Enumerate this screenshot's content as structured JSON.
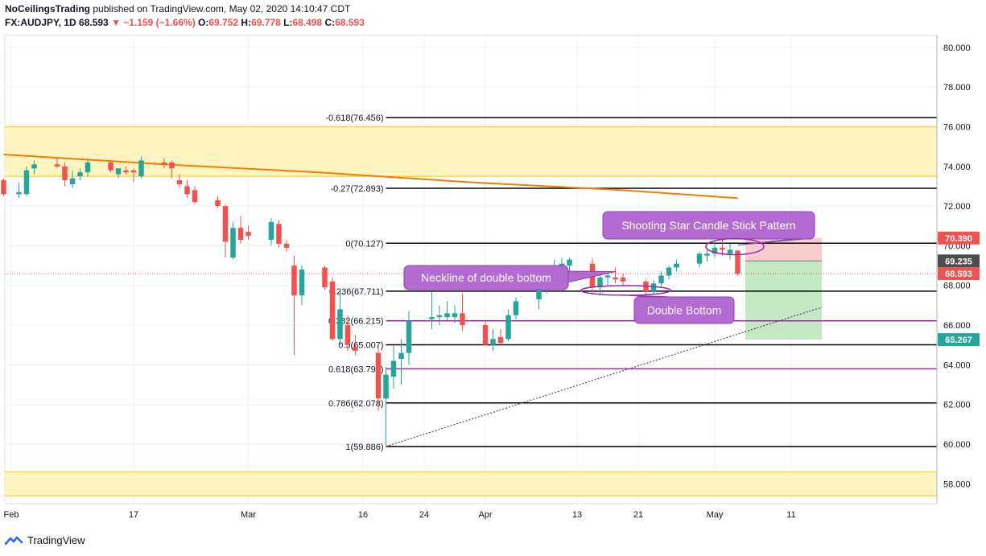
{
  "header": {
    "author": "NoCeilingsTrading",
    "published": "published on TradingView.com, May 02, 2020 14:10:47 CDT",
    "symbol": "FX:AUDJPY, 1D",
    "last": "68.593",
    "change": "▼ −1.159 (−1.66%)",
    "o_label": "O:",
    "o_value": "69.752",
    "h_label": "H:",
    "h_value": "69.778",
    "l_label": "L:",
    "l_value": "68.498",
    "c_label": "C:",
    "c_value": "68.593"
  },
  "footer": {
    "brand": "TradingView",
    "logo_icon": "tradingview-logo-icon"
  },
  "colors": {
    "up": "#26a69a",
    "down": "#ef5350",
    "zone": "#fff3b0",
    "zone_border": "#f7d64a",
    "ma": "#f57c00",
    "callout": "#b36ad1",
    "fib_purple": "#9c27b0"
  },
  "chart_data": {
    "type": "candlestick",
    "ylim": [
      57.0,
      80.6
    ],
    "yticks": [
      58,
      60,
      62,
      64,
      66,
      68,
      70,
      72,
      74,
      76,
      78,
      80
    ],
    "ytick_labels": [
      "58.000",
      "60.000",
      "62.000",
      "64.000",
      "66.000",
      "68.000",
      "70.000",
      "72.000",
      "74.000",
      "76.000",
      "78.000",
      "80.000"
    ],
    "xticks": [
      {
        "label": "Feb",
        "day": 0
      },
      {
        "label": "17",
        "day": 16
      },
      {
        "label": "Mar",
        "day": 31
      },
      {
        "label": "16",
        "day": 46
      },
      {
        "label": "24",
        "day": 54
      },
      {
        "label": "Apr",
        "day": 62
      },
      {
        "label": "13",
        "day": 74
      },
      {
        "label": "21",
        "day": 82
      },
      {
        "label": "May",
        "day": 92
      },
      {
        "label": "11",
        "day": 102
      }
    ],
    "candles": [
      {
        "day": -1,
        "o": 73.3,
        "h": 73.4,
        "l": 72.5,
        "c": 72.6
      },
      {
        "day": 1,
        "o": 72.6,
        "h": 73.2,
        "l": 72.4,
        "c": 72.7
      },
      {
        "day": 2,
        "o": 72.6,
        "h": 74.0,
        "l": 72.5,
        "c": 73.8
      },
      {
        "day": 3,
        "o": 73.9,
        "h": 74.3,
        "l": 73.6,
        "c": 74.1
      },
      {
        "day": 6,
        "o": 74.1,
        "h": 74.4,
        "l": 73.9,
        "c": 74.0
      },
      {
        "day": 7,
        "o": 74.0,
        "h": 74.2,
        "l": 73.0,
        "c": 73.3
      },
      {
        "day": 8,
        "o": 73.1,
        "h": 73.8,
        "l": 72.9,
        "c": 73.4
      },
      {
        "day": 9,
        "o": 73.5,
        "h": 73.9,
        "l": 73.3,
        "c": 73.7
      },
      {
        "day": 10,
        "o": 73.7,
        "h": 74.4,
        "l": 73.5,
        "c": 74.2
      },
      {
        "day": 13,
        "o": 74.2,
        "h": 74.3,
        "l": 73.7,
        "c": 73.8
      },
      {
        "day": 14,
        "o": 73.6,
        "h": 73.9,
        "l": 73.4,
        "c": 73.9
      },
      {
        "day": 15,
        "o": 73.8,
        "h": 74.0,
        "l": 73.6,
        "c": 73.7
      },
      {
        "day": 16,
        "o": 73.8,
        "h": 73.9,
        "l": 73.2,
        "c": 73.7
      },
      {
        "day": 17,
        "o": 73.5,
        "h": 74.5,
        "l": 73.4,
        "c": 74.3
      },
      {
        "day": 20,
        "o": 74.2,
        "h": 74.4,
        "l": 73.9,
        "c": 74.1
      },
      {
        "day": 21,
        "o": 74.2,
        "h": 74.3,
        "l": 73.4,
        "c": 73.9
      },
      {
        "day": 22,
        "o": 73.3,
        "h": 73.6,
        "l": 72.9,
        "c": 73.1
      },
      {
        "day": 23,
        "o": 73.0,
        "h": 73.3,
        "l": 72.4,
        "c": 72.6
      },
      {
        "day": 24,
        "o": 72.8,
        "h": 73.0,
        "l": 72.1,
        "c": 72.2
      },
      {
        "day": 27,
        "o": 72.3,
        "h": 72.5,
        "l": 71.9,
        "c": 72.0
      },
      {
        "day": 28,
        "o": 72.0,
        "h": 72.1,
        "l": 69.4,
        "c": 70.2
      },
      {
        "day": 29,
        "o": 69.4,
        "h": 71.2,
        "l": 69.3,
        "c": 70.9
      },
      {
        "day": 30,
        "o": 70.9,
        "h": 71.5,
        "l": 70.1,
        "c": 70.3
      },
      {
        "day": 31,
        "o": 70.7,
        "h": 71.0,
        "l": 70.3,
        "c": 70.5
      },
      {
        "day": 34,
        "o": 70.3,
        "h": 71.4,
        "l": 70.0,
        "c": 71.2
      },
      {
        "day": 35,
        "o": 71.1,
        "h": 71.3,
        "l": 69.9,
        "c": 70.1
      },
      {
        "day": 36,
        "o": 70.1,
        "h": 70.3,
        "l": 69.7,
        "c": 69.9
      },
      {
        "day": 37,
        "o": 69.0,
        "h": 69.5,
        "l": 64.5,
        "c": 67.5
      },
      {
        "day": 38,
        "o": 67.5,
        "h": 69.0,
        "l": 67.0,
        "c": 68.8
      },
      {
        "day": 41,
        "o": 68.9,
        "h": 69.0,
        "l": 67.8,
        "c": 67.9
      },
      {
        "day": 42,
        "o": 68.2,
        "h": 68.4,
        "l": 65.2,
        "c": 65.3
      },
      {
        "day": 43,
        "o": 65.3,
        "h": 67.8,
        "l": 65.0,
        "c": 66.8
      },
      {
        "day": 44,
        "o": 66.0,
        "h": 66.5,
        "l": 64.7,
        "c": 65.0
      },
      {
        "day": 45,
        "o": 64.9,
        "h": 65.5,
        "l": 64.5,
        "c": 64.7
      },
      {
        "day": 48,
        "o": 64.6,
        "h": 64.9,
        "l": 61.7,
        "c": 62.3
      },
      {
        "day": 49,
        "o": 62.3,
        "h": 63.9,
        "l": 59.9,
        "c": 63.5
      },
      {
        "day": 50,
        "o": 63.4,
        "h": 65.0,
        "l": 62.8,
        "c": 64.2
      },
      {
        "day": 51,
        "o": 64.3,
        "h": 65.3,
        "l": 63.0,
        "c": 64.6
      },
      {
        "day": 52,
        "o": 64.6,
        "h": 66.7,
        "l": 64.0,
        "c": 66.2
      },
      {
        "day": 55,
        "o": 66.3,
        "h": 67.7,
        "l": 65.8,
        "c": 66.4
      },
      {
        "day": 56,
        "o": 66.4,
        "h": 67.0,
        "l": 66.0,
        "c": 66.5
      },
      {
        "day": 57,
        "o": 66.4,
        "h": 67.2,
        "l": 66.2,
        "c": 66.6
      },
      {
        "day": 58,
        "o": 66.4,
        "h": 67.0,
        "l": 66.1,
        "c": 66.6
      },
      {
        "day": 59,
        "o": 66.6,
        "h": 67.6,
        "l": 65.7,
        "c": 66.0
      },
      {
        "day": 62,
        "o": 66.0,
        "h": 66.2,
        "l": 65.0,
        "c": 65.0
      },
      {
        "day": 63,
        "o": 65.0,
        "h": 65.8,
        "l": 64.7,
        "c": 65.3
      },
      {
        "day": 64,
        "o": 65.4,
        "h": 65.8,
        "l": 65.0,
        "c": 65.1
      },
      {
        "day": 65,
        "o": 65.3,
        "h": 66.8,
        "l": 65.2,
        "c": 66.5
      },
      {
        "day": 66,
        "o": 66.5,
        "h": 67.4,
        "l": 66.3,
        "c": 67.2
      },
      {
        "day": 69,
        "o": 67.3,
        "h": 68.2,
        "l": 66.8,
        "c": 67.8
      },
      {
        "day": 70,
        "o": 67.9,
        "h": 68.6,
        "l": 67.6,
        "c": 68.5
      },
      {
        "day": 71,
        "o": 68.5,
        "h": 69.3,
        "l": 68.2,
        "c": 69.0
      },
      {
        "day": 72,
        "o": 69.0,
        "h": 69.4,
        "l": 68.7,
        "c": 69.1
      },
      {
        "day": 73,
        "o": 69.0,
        "h": 69.4,
        "l": 68.6,
        "c": 69.3
      },
      {
        "day": 76,
        "o": 69.1,
        "h": 69.4,
        "l": 67.6,
        "c": 67.9
      },
      {
        "day": 77,
        "o": 67.9,
        "h": 68.6,
        "l": 67.6,
        "c": 68.4
      },
      {
        "day": 78,
        "o": 68.4,
        "h": 68.6,
        "l": 68.0,
        "c": 68.5
      },
      {
        "day": 79,
        "o": 68.4,
        "h": 68.9,
        "l": 68.1,
        "c": 68.3
      },
      {
        "day": 80,
        "o": 68.4,
        "h": 68.6,
        "l": 68.0,
        "c": 68.2
      },
      {
        "day": 83,
        "o": 68.2,
        "h": 68.3,
        "l": 67.5,
        "c": 67.7
      },
      {
        "day": 84,
        "o": 67.7,
        "h": 68.3,
        "l": 67.6,
        "c": 68.1
      },
      {
        "day": 85,
        "o": 68.1,
        "h": 68.7,
        "l": 67.9,
        "c": 68.5
      },
      {
        "day": 86,
        "o": 68.5,
        "h": 69.0,
        "l": 68.3,
        "c": 68.9
      },
      {
        "day": 87,
        "o": 68.9,
        "h": 69.3,
        "l": 68.7,
        "c": 69.1
      },
      {
        "day": 90,
        "o": 69.1,
        "h": 69.7,
        "l": 68.9,
        "c": 69.6
      },
      {
        "day": 91,
        "o": 69.5,
        "h": 69.9,
        "l": 69.2,
        "c": 69.6
      },
      {
        "day": 92,
        "o": 69.6,
        "h": 70.2,
        "l": 69.4,
        "c": 69.9
      },
      {
        "day": 93,
        "o": 69.9,
        "h": 70.3,
        "l": 69.5,
        "c": 69.8
      },
      {
        "day": 94,
        "o": 69.6,
        "h": 70.1,
        "l": 69.3,
        "c": 69.8
      },
      {
        "day": 95,
        "o": 69.752,
        "h": 69.778,
        "l": 68.498,
        "c": 68.593
      }
    ],
    "moving_average": [
      {
        "day": -1,
        "v": 74.6
      },
      {
        "day": 20,
        "v": 74.1
      },
      {
        "day": 40,
        "v": 73.7
      },
      {
        "day": 60,
        "v": 73.2
      },
      {
        "day": 80,
        "v": 72.8
      },
      {
        "day": 95,
        "v": 72.4
      }
    ],
    "zones": [
      {
        "y0": 73.5,
        "y1": 76.0
      },
      {
        "y0": 57.4,
        "y1": 58.6
      }
    ],
    "fib_levels": [
      {
        "label": "-0.618(76.456)",
        "value": 76.456,
        "color": "#000000"
      },
      {
        "label": "-0.27(72.893)",
        "value": 72.893,
        "color": "#000000"
      },
      {
        "label": "0(70.127)",
        "value": 70.127,
        "color": "#000000"
      },
      {
        "label": "0.236(67.711)",
        "value": 67.711,
        "color": "#000000"
      },
      {
        "label": "0.382(66.215)",
        "value": 66.215,
        "color": "#9c27b0"
      },
      {
        "label": "0.5(65.007)",
        "value": 65.007,
        "color": "#000000"
      },
      {
        "label": "0.618(63.799)",
        "value": 63.799,
        "color": "#9c27b0"
      },
      {
        "label": "0.786(62.078)",
        "value": 62.078,
        "color": "#000000"
      },
      {
        "label": "1(59.886)",
        "value": 59.886,
        "color": "#000000"
      }
    ],
    "trendline": {
      "from": {
        "day": 49,
        "v": 59.886
      },
      "to": {
        "day": 106,
        "v": 66.9
      }
    },
    "position": {
      "from_day": 96,
      "to_day": 106,
      "entry": 69.235,
      "stop": 70.39,
      "target": 65.267
    },
    "price_badges": [
      {
        "label": "70.390",
        "value": 70.39,
        "color": "#ef5350"
      },
      {
        "label": "69.235",
        "value": 69.235,
        "color": "#4d4d4d"
      },
      {
        "label": "68.593",
        "value": 68.593,
        "color": "#ef5350"
      },
      {
        "label": "65.267",
        "value": 65.267,
        "color": "#26a69a"
      }
    ],
    "annotations": [
      {
        "text": "Shooting Star Candle Stick Pattern",
        "anchor_day": 94,
        "anchor_v": 70.2
      },
      {
        "text": "Neckline of double bottom",
        "anchor_day": 79,
        "anchor_v": 68.7
      },
      {
        "text": "Double Bottom",
        "anchor_day": 80,
        "anchor_v": 67.6
      }
    ],
    "last_price": 68.593
  }
}
